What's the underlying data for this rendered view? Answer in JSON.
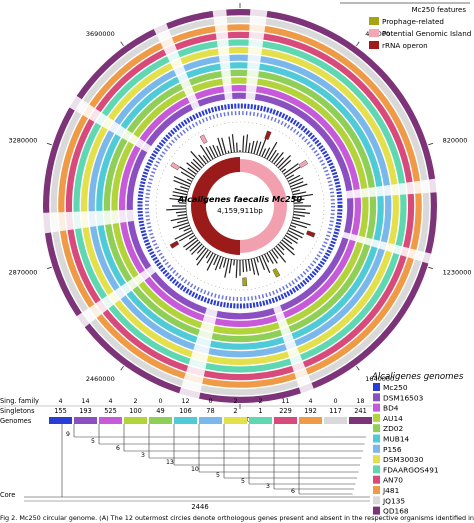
{
  "figure": {
    "features_title": "Mc250 features",
    "features": [
      {
        "label": "Prophage-related",
        "color": "#a5a514"
      },
      {
        "label": "Potential Genomic Island",
        "color": "#f4a6b4"
      },
      {
        "label": "rRNA operon",
        "color": "#a01a1a"
      }
    ],
    "center_name": "Alcaligenes faecalis Mc250",
    "center_size": "4,159,911bp",
    "genome_ticks": [
      "4100000",
      "410000",
      "820000",
      "1230000",
      "1640000",
      "2050000",
      "2460000",
      "2870000",
      "3280000",
      "3690000"
    ],
    "genomes_title": "Alcaligenes genomes",
    "genomes": [
      {
        "label": "Mc250",
        "color": "#2a3cd6"
      },
      {
        "label": "DSM16503",
        "color": "#8c4fc2"
      },
      {
        "label": "BD4",
        "color": "#c65ad8"
      },
      {
        "label": "AU14",
        "color": "#b2d43a"
      },
      {
        "label": "ZD02",
        "color": "#8fcf57"
      },
      {
        "label": "MUB14",
        "color": "#4fcbd8"
      },
      {
        "label": "P156",
        "color": "#7ab7ea"
      },
      {
        "label": "DSM30030",
        "color": "#e4e04c"
      },
      {
        "label": "FDAARGOS491",
        "color": "#5fd8b2"
      },
      {
        "label": "AN70",
        "color": "#d84a7a"
      },
      {
        "label": "J481",
        "color": "#ee9a46"
      },
      {
        "label": "JQ135",
        "color": "#d9d9d9"
      },
      {
        "label": "QD168",
        "color": "#7d3378"
      }
    ],
    "bar_rows": [
      "Sing. family",
      "Singletons",
      "Genomes"
    ],
    "sing_family": [
      "4",
      "14",
      "4",
      "2",
      "0",
      "12",
      "0",
      "2",
      "2",
      "11",
      "4",
      "0",
      "18"
    ],
    "singletons": [
      "155",
      "193",
      "525",
      "100",
      "49",
      "106",
      "78",
      "2",
      "1",
      "229",
      "192",
      "117",
      "241"
    ],
    "tree_numbers": [
      "9",
      "5",
      "6",
      "3",
      "13",
      "10",
      "5",
      "5",
      "3",
      "6"
    ],
    "core_label": "Core",
    "core_value": "2446",
    "caption_start": "Fig 2. Mc250 circular genome. (A) The 12 outermost circles denote orthologous genes present and absent in the respective organisms identified in"
  }
}
